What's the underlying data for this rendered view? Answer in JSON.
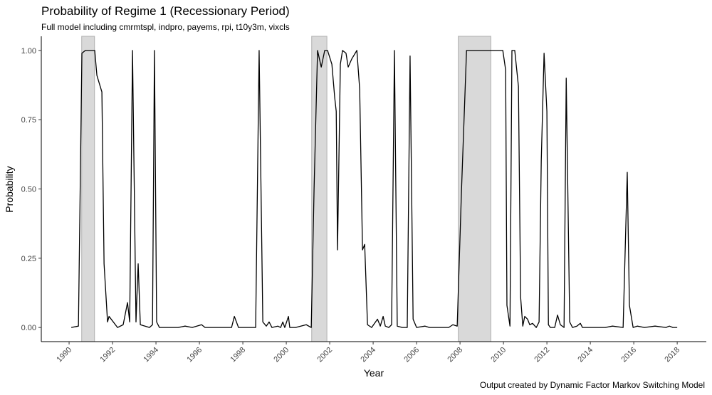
{
  "chart_data": {
    "type": "line",
    "title": "Probability of Regime 1 (Recessionary Period)",
    "subtitle": "Full model including cmrmtspl, indpro, payems, rpi, t10y3m, vixcls",
    "caption": "Output created by Dynamic Factor Markov Switching Model",
    "x_label": "Year",
    "y_label": "Probability",
    "shaded_periods": [
      [
        1990.58,
        1991.17
      ],
      [
        2001.17,
        2001.87
      ],
      [
        2007.92,
        2009.42
      ]
    ],
    "shade_color": "#d9d9d9",
    "series": [
      {
        "name": "Probability",
        "color": "#000000",
        "x": [
          1990.1,
          1990.43,
          1990.59,
          1990.75,
          1991.18,
          1991.28,
          1991.51,
          1991.61,
          1991.77,
          1991.84,
          1992.23,
          1992.49,
          1992.69,
          1992.79,
          1992.92,
          1993.08,
          1993.18,
          1993.28,
          1993.7,
          1993.84,
          1993.93,
          1994.03,
          1994.16,
          1995.02,
          1995.34,
          1995.67,
          1996.1,
          1996.26,
          1997.48,
          1997.61,
          1997.8,
          1998.46,
          1998.59,
          1998.75,
          1998.92,
          1999.08,
          1999.21,
          1999.34,
          1999.61,
          1999.74,
          1999.84,
          1999.93,
          2000.1,
          2000.16,
          2000.43,
          2000.92,
          2001.15,
          2001.28,
          2001.44,
          2001.61,
          2001.77,
          2001.9,
          2002.1,
          2002.23,
          2002.3,
          2002.36,
          2002.49,
          2002.59,
          2002.75,
          2002.85,
          2003.02,
          2003.25,
          2003.38,
          2003.51,
          2003.61,
          2003.74,
          2003.93,
          2004.2,
          2004.33,
          2004.46,
          2004.56,
          2004.72,
          2004.85,
          2004.98,
          2005.11,
          2005.34,
          2005.57,
          2005.7,
          2005.84,
          2006.0,
          2006.39,
          2006.59,
          2007.15,
          2007.48,
          2007.67,
          2007.87,
          2008.07,
          2008.3,
          2009.77,
          2009.97,
          2010.1,
          2010.16,
          2010.3,
          2010.39,
          2010.52,
          2010.69,
          2010.79,
          2010.89,
          2010.98,
          2011.11,
          2011.21,
          2011.34,
          2011.51,
          2011.64,
          2011.74,
          2011.87,
          2012.0,
          2012.07,
          2012.16,
          2012.36,
          2012.49,
          2012.62,
          2012.79,
          2012.89,
          2013.05,
          2013.18,
          2013.38,
          2013.54,
          2013.64,
          2014.03,
          2014.69,
          2015.02,
          2015.51,
          2015.7,
          2015.8,
          2015.97,
          2016.16,
          2016.49,
          2016.98,
          2017.48,
          2017.64,
          2017.8,
          2018.0
        ],
        "values": [
          0,
          0.005,
          0.99,
          1.0,
          1.0,
          0.91,
          0.85,
          0.23,
          0.02,
          0.04,
          0.0,
          0.01,
          0.09,
          0.02,
          1.0,
          0.02,
          0.23,
          0.01,
          0.0,
          0.01,
          1.0,
          0.02,
          0.0,
          0.0,
          0.005,
          0.0,
          0.01,
          0.0,
          0.0,
          0.04,
          0.0,
          0.0,
          0.0,
          1.0,
          0.02,
          0.005,
          0.02,
          0.0,
          0.005,
          0.0,
          0.02,
          0.0,
          0.04,
          0.0,
          0.0,
          0.01,
          0.0,
          0.5,
          1.0,
          0.94,
          1.0,
          1.0,
          0.95,
          0.83,
          0.78,
          0.28,
          0.95,
          1.0,
          0.99,
          0.94,
          0.97,
          1.0,
          0.86,
          0.28,
          0.3,
          0.01,
          0.0,
          0.03,
          0.005,
          0.04,
          0.005,
          0.0,
          0.01,
          1.0,
          0.005,
          0.0,
          0.0,
          0.98,
          0.03,
          0.0,
          0.005,
          0.0,
          0.0,
          0.0,
          0.01,
          0.005,
          0.5,
          1.0,
          1.0,
          1.0,
          0.93,
          0.08,
          0.005,
          1.0,
          1.0,
          0.87,
          0.11,
          0.005,
          0.04,
          0.03,
          0.01,
          0.015,
          0.0,
          0.02,
          0.6,
          0.99,
          0.78,
          0.01,
          0.0,
          0.0,
          0.045,
          0.01,
          0.0,
          0.9,
          0.02,
          0.0,
          0.005,
          0.015,
          0.0,
          0.0,
          0.0,
          0.005,
          0.0,
          0.56,
          0.08,
          0.0,
          0.005,
          0.0,
          0.005,
          0.0,
          0.005,
          0.0,
          0.0
        ]
      }
    ],
    "xlim": [
      1988.72,
      2019.34
    ],
    "ylim": [
      -0.051,
      1.051
    ],
    "xticks": [
      1990,
      1992,
      1994,
      1996,
      1998,
      2000,
      2002,
      2004,
      2006,
      2008,
      2010,
      2012,
      2014,
      2016,
      2018
    ],
    "yticks": [
      {
        "value": 0,
        "label": "0.00"
      },
      {
        "value": 0.25,
        "label": "0.25"
      },
      {
        "value": 0.5,
        "label": "0.50"
      },
      {
        "value": 0.75,
        "label": "0.75"
      },
      {
        "value": 1,
        "label": "1.00"
      }
    ],
    "grid": false
  }
}
